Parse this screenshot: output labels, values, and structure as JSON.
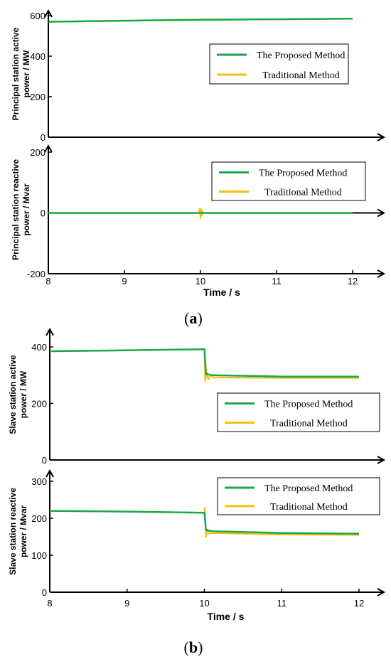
{
  "colors": {
    "proposed": "#1aa84a",
    "traditional": "#f2bf14",
    "axis": "#000000"
  },
  "captions": {
    "a": "a",
    "b": "b"
  },
  "chart_data": [
    {
      "type": "line",
      "ylabel": [
        "Principal station active",
        "power / MW"
      ],
      "xlim": [
        8,
        12
      ],
      "ylim": [
        0,
        620
      ],
      "yticks": [
        "0",
        "200",
        "400",
        "600"
      ],
      "xticks": [],
      "xlabel": "",
      "legend": [
        "The Proposed Method",
        "Traditional Method"
      ],
      "legend_position": "upper-right",
      "series": [
        {
          "name": "The Proposed Method",
          "x": [
            8,
            9,
            10,
            11,
            12
          ],
          "y": [
            570,
            575,
            580,
            582,
            585
          ]
        },
        {
          "name": "Traditional Method",
          "x": [
            8,
            9,
            9.98,
            10,
            10.02,
            11,
            12
          ],
          "y": [
            570,
            575,
            578,
            582,
            578,
            582,
            585
          ]
        }
      ]
    },
    {
      "type": "line",
      "ylabel": [
        "Principal station reactive",
        "power / Mvar"
      ],
      "xlim": [
        8,
        12
      ],
      "ylim": [
        -200,
        200
      ],
      "yticks": [
        "-200",
        "0",
        "200"
      ],
      "xticks": [
        "8",
        "9",
        "10",
        "11",
        "12"
      ],
      "xlabel": "Time / s",
      "legend": [
        "The Proposed Method",
        "Traditional Method"
      ],
      "legend_position": "upper-right",
      "series": [
        {
          "name": "The Proposed Method",
          "x": [
            8,
            9,
            10,
            11,
            12
          ],
          "y": [
            0,
            0,
            0,
            0,
            0
          ]
        },
        {
          "name": "Traditional Method",
          "x": [
            8,
            9.98,
            9.99,
            10,
            10.01,
            10.02,
            10.03,
            10.05,
            12
          ],
          "y": [
            0,
            0,
            15,
            -18,
            12,
            -8,
            4,
            0,
            0
          ]
        }
      ]
    },
    {
      "type": "line",
      "ylabel": [
        "Slave station active",
        "power / MW"
      ],
      "xlim": [
        8,
        12.2
      ],
      "ylim": [
        0,
        430
      ],
      "yticks": [
        "0",
        "200",
        "400"
      ],
      "xticks": [],
      "xlabel": "",
      "legend": [
        "The Proposed Method",
        "Traditional Method"
      ],
      "legend_position": "center-right",
      "series": [
        {
          "name": "The Proposed Method",
          "x": [
            8,
            9,
            10,
            10.02,
            10.1,
            11,
            12
          ],
          "y": [
            385,
            388,
            392,
            305,
            300,
            295,
            295
          ]
        },
        {
          "name": "Traditional Method",
          "x": [
            8,
            9,
            10,
            10.01,
            10.03,
            10.05,
            10.08,
            10.12,
            11,
            12
          ],
          "y": [
            385,
            388,
            392,
            280,
            310,
            285,
            300,
            292,
            290,
            290
          ]
        }
      ]
    },
    {
      "type": "line",
      "ylabel": [
        "Slave station reactive",
        "power / Mvar"
      ],
      "xlim": [
        8,
        12.2
      ],
      "ylim": [
        0,
        320
      ],
      "yticks": [
        "0",
        "100",
        "200",
        "300"
      ],
      "xticks": [
        "8",
        "9",
        "10",
        "11",
        "12"
      ],
      "xlabel": "Time / s",
      "legend": [
        "The Proposed Method",
        "Traditional Method"
      ],
      "legend_position": "upper-right",
      "series": [
        {
          "name": "The Proposed Method",
          "x": [
            8,
            9,
            10,
            10.02,
            10.1,
            11,
            12
          ],
          "y": [
            220,
            218,
            215,
            168,
            165,
            160,
            158
          ]
        },
        {
          "name": "Traditional Method",
          "x": [
            8,
            9,
            10,
            10.005,
            10.02,
            10.04,
            10.06,
            10.1,
            11,
            12
          ],
          "y": [
            220,
            218,
            215,
            228,
            150,
            170,
            158,
            160,
            156,
            155
          ]
        }
      ]
    }
  ]
}
